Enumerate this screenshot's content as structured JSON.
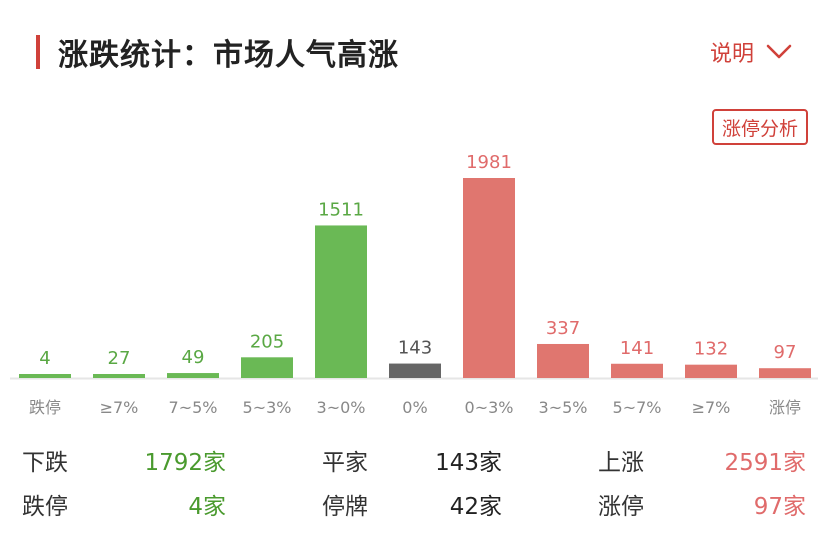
{
  "header": {
    "title": "涨跌统计：市场人气高涨",
    "explain_label": "说明",
    "limit_up_button": "涨停分析"
  },
  "chart_data": {
    "type": "bar",
    "categories": [
      "跌停",
      "≥7%",
      "7~5%",
      "5~3%",
      "3~0%",
      "0%",
      "0~3%",
      "3~5%",
      "5~7%",
      "≥7%",
      "涨停"
    ],
    "values": [
      4,
      27,
      49,
      205,
      1511,
      143,
      1981,
      337,
      141,
      132,
      97
    ],
    "ylim": [
      0,
      1981
    ],
    "colors": [
      "#6ab955",
      "#6ab955",
      "#6ab955",
      "#6ab955",
      "#6ab955",
      "#666666",
      "#e0766f",
      "#e0766f",
      "#e0766f",
      "#e0766f",
      "#e0766f"
    ],
    "label_colors": [
      "#5aa844",
      "#5aa844",
      "#5aa844",
      "#5aa844",
      "#5aa844",
      "#555555",
      "#e06b6b",
      "#e06b6b",
      "#e06b6b",
      "#e06b6b",
      "#e06b6b"
    ],
    "grid": false
  },
  "summary": {
    "row1": {
      "down_label": "下跌",
      "down_value": "1792家",
      "flat_label": "平家",
      "flat_value": "143家",
      "up_label": "上涨",
      "up_value": "2591家"
    },
    "row2": {
      "limit_down_label": "跌停",
      "limit_down_value": "4家",
      "suspended_label": "停牌",
      "suspended_value": "42家",
      "limit_up_label": "涨停",
      "limit_up_value": "97家"
    }
  }
}
